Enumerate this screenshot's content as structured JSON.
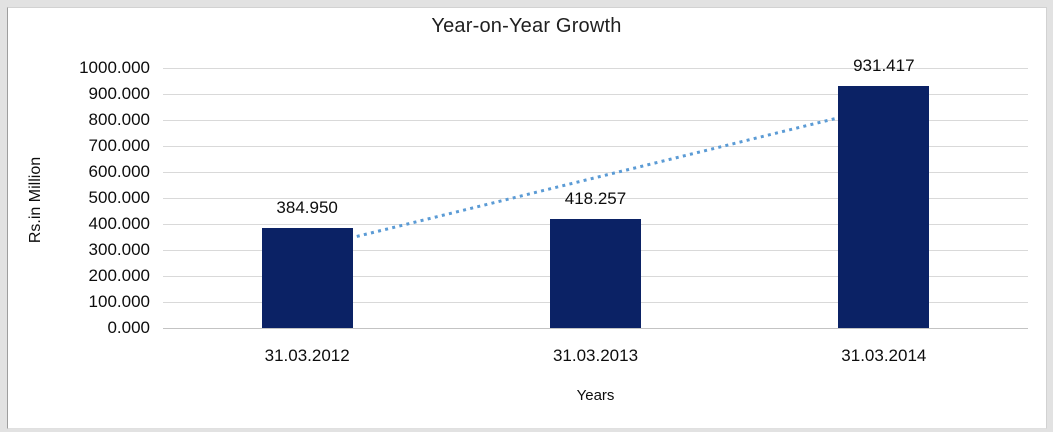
{
  "window": {
    "frame_color": "#e2e2e2",
    "card_color": "#ffffff"
  },
  "chart_data": {
    "type": "bar",
    "title": "Year-on-Year Growth",
    "categories": [
      "31.03.2012",
      "31.03.2013",
      "31.03.2014"
    ],
    "values": [
      384.95,
      418.257,
      931.417
    ],
    "data_labels": [
      "384.950",
      "418.257",
      "931.417"
    ],
    "xlabel": "Years",
    "ylabel": "Rs.in Million",
    "ylim": [
      0,
      1000
    ],
    "ytick_step": 100,
    "ytick_labels": [
      "1000.000",
      "900.000",
      "800.000",
      "700.000",
      "600.000",
      "500.000",
      "400.000",
      "300.000",
      "200.000",
      "100.000",
      "0.000"
    ],
    "grid": "horizontal",
    "legend": "none",
    "bar_color": "#0b2265",
    "gridline_color": "#d9d9d9",
    "axis_line_color": "#c3c3c3",
    "trendline": {
      "type": "linear",
      "style": "dotted",
      "color": "#5b9bd5",
      "start_value": 305.0,
      "end_value": 851.5
    }
  }
}
